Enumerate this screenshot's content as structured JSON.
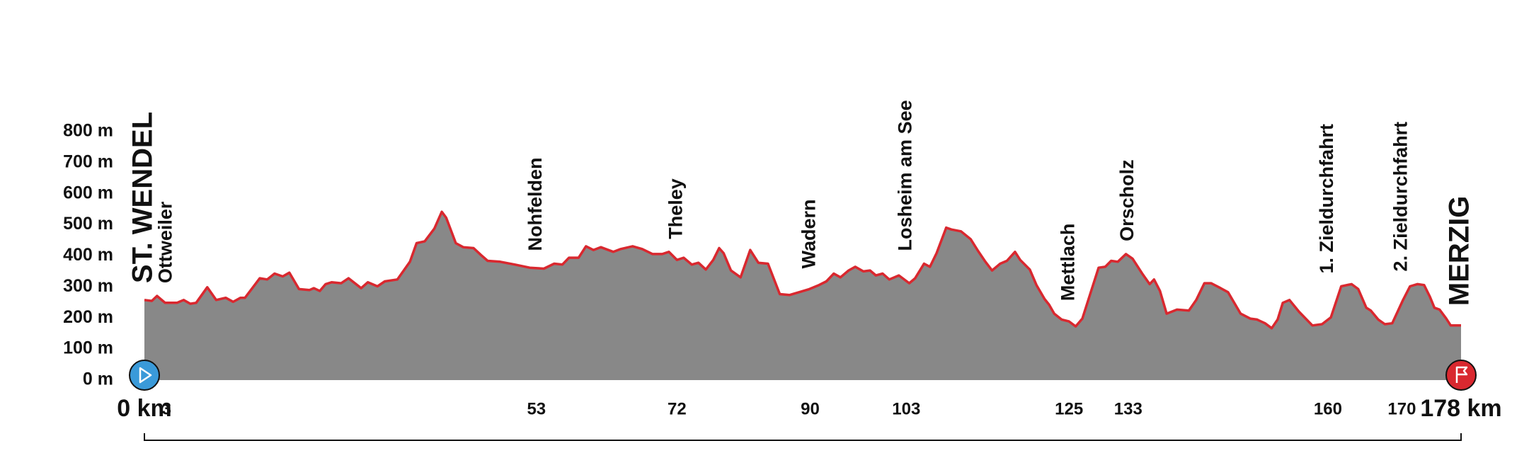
{
  "chart_data": {
    "type": "area",
    "x": [
      0,
      1,
      1.7,
      2.8,
      4.4,
      5.3,
      6.2,
      7,
      8.5,
      9.7,
      11,
      12,
      13,
      13.6,
      14.3,
      15.6,
      16.6,
      17.6,
      18.7,
      19.6,
      20.9,
      22.3,
      22.9,
      23.7,
      24.5,
      25.3,
      26.6,
      27.6,
      29.3,
      30.2,
      31.5,
      32.5,
      34.2,
      35.9,
      36.8,
      37.9,
      39.2,
      40.2,
      40.8,
      42.1,
      43.1,
      44.5,
      45.5,
      46.4,
      48.1,
      50.1,
      52.1,
      54,
      55.4,
      56.5,
      57.4,
      58.7,
      59.7,
      60.7,
      61.7,
      63.4,
      64.4,
      66,
      67.3,
      68.7,
      70,
      70.9,
      72,
      72.9,
      74,
      74.9,
      75.9,
      76.9,
      77.7,
      78.3,
      79.3,
      80.6,
      81.9,
      83,
      84.3,
      85.9,
      87.2,
      88.5,
      89.9,
      91.2,
      92.2,
      93.2,
      94.1,
      95.2,
      96.1,
      97.2,
      98.1,
      98.9,
      99.8,
      100.7,
      102,
      103.4,
      104.2,
      105.4,
      106.2,
      107.1,
      108.4,
      109.1,
      110.4,
      111.7,
      112.7,
      113.7,
      114.6,
      115.7,
      116.6,
      117.7,
      118.4,
      119.7,
      120.6,
      121.7,
      122.3,
      123,
      124,
      125,
      125.9,
      126.8,
      127.9,
      129,
      129.9,
      130.7,
      131.6,
      132.7,
      133.6,
      134.9,
      135.9,
      136.5,
      137.3,
      138.2,
      139.6,
      141.2,
      142.2,
      143.3,
      144.2,
      145.5,
      146.5,
      148.2,
      149.5,
      150.4,
      151.5,
      152.4,
      153.2,
      153.9,
      154.8,
      156.1,
      157.9,
      159.2,
      160.4,
      161.8,
      163.2,
      164.1,
      165.2,
      165.8,
      166.8,
      167.7,
      168.7,
      170.1,
      171.1,
      172.1,
      173,
      173.8,
      174.4,
      175.1,
      176,
      176.6,
      178
    ],
    "values": [
      258,
      255,
      271,
      249,
      249,
      258,
      246,
      249,
      299,
      258,
      265,
      252,
      265,
      265,
      287,
      328,
      324,
      343,
      334,
      346,
      293,
      290,
      296,
      287,
      309,
      315,
      312,
      328,
      296,
      315,
      302,
      318,
      324,
      381,
      441,
      447,
      488,
      542,
      523,
      441,
      428,
      425,
      403,
      384,
      381,
      372,
      362,
      359,
      375,
      372,
      394,
      394,
      431,
      419,
      428,
      413,
      422,
      431,
      422,
      406,
      406,
      413,
      387,
      394,
      372,
      378,
      356,
      387,
      425,
      409,
      353,
      331,
      419,
      378,
      375,
      277,
      274,
      283,
      293,
      306,
      318,
      343,
      331,
      353,
      365,
      350,
      353,
      337,
      343,
      324,
      337,
      312,
      328,
      375,
      365,
      409,
      491,
      485,
      479,
      454,
      416,
      381,
      353,
      375,
      384,
      413,
      387,
      356,
      306,
      261,
      243,
      214,
      195,
      189,
      173,
      198,
      280,
      362,
      365,
      384,
      381,
      406,
      391,
      343,
      309,
      324,
      287,
      214,
      227,
      224,
      258,
      312,
      312,
      296,
      283,
      214,
      198,
      195,
      183,
      167,
      195,
      249,
      258,
      220,
      176,
      180,
      202,
      302,
      309,
      293,
      233,
      224,
      195,
      180,
      183,
      255,
      302,
      309,
      306,
      268,
      233,
      227,
      198,
      176,
      176
    ],
    "fill": "#888888",
    "line_color": "#d9282f",
    "xlim": [
      0,
      178
    ],
    "ylim": [
      0,
      800
    ],
    "xticks": [
      {
        "value": 0,
        "label": "0 km"
      },
      3,
      53,
      72,
      90,
      103,
      125,
      133,
      160,
      170,
      {
        "value": 178,
        "label": "178 km"
      }
    ],
    "yticks": [
      {
        "value": 0,
        "label": "0 m"
      },
      {
        "value": 100,
        "label": "100 m"
      },
      {
        "value": 200,
        "label": "200 m"
      },
      {
        "value": 300,
        "label": "300 m"
      },
      {
        "value": 400,
        "label": "400 m"
      },
      {
        "value": 500,
        "label": "500 m"
      },
      {
        "value": 600,
        "label": "600 m"
      },
      {
        "value": 700,
        "label": "700 m"
      },
      {
        "value": 800,
        "label": "800 m"
      }
    ],
    "places": [
      "ST. WENDEL",
      "Ottweiler",
      "Nohfelden",
      "Theley",
      "Wadern",
      "Losheim am See",
      "Mettlach",
      "Orscholz",
      "1. Zieldurchfahrt",
      "2. Zieldurchfahrt",
      "MERZIG"
    ]
  }
}
